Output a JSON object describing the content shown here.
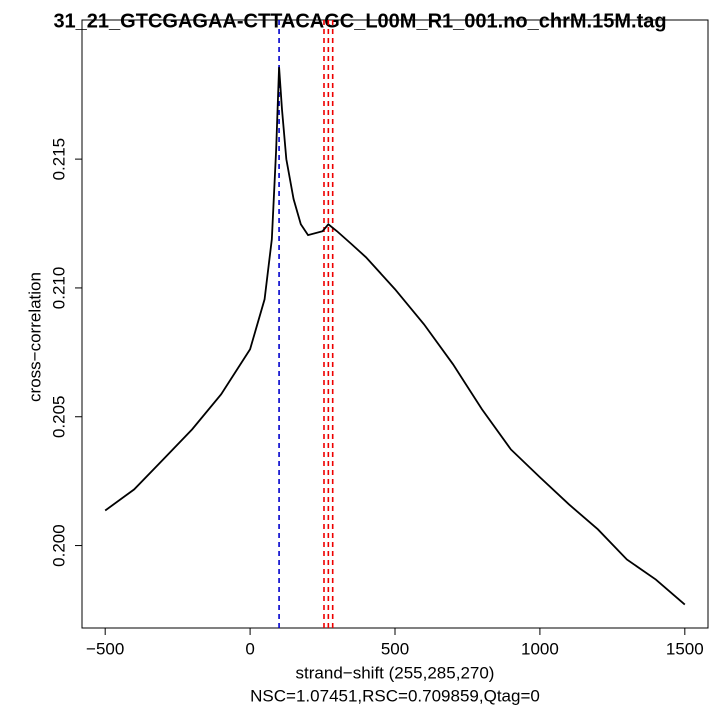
{
  "chart_data": {
    "type": "line",
    "title": "31_21_GTCGAGAA-CTTACAGC_L00M_R1_001.no_chrM.15M.tag",
    "x_label": "strand−shift (255,285,270)",
    "subtitle": "NSC=1.07451,RSC=0.709859,Qtag=0",
    "y_label": "cross−correlation",
    "x": [
      -500,
      -400,
      -300,
      -200,
      -100,
      0,
      50,
      75,
      90,
      100,
      110,
      125,
      150,
      175,
      200,
      250,
      270,
      300,
      350,
      400,
      500,
      600,
      700,
      800,
      900,
      1000,
      1100,
      1200,
      1300,
      1400,
      1500
    ],
    "series": [
      {
        "color": "#000000",
        "values": [
          0.20136,
          0.20218,
          0.20334,
          0.20451,
          0.20587,
          0.20762,
          0.20956,
          0.21189,
          0.21539,
          0.21857,
          0.21694,
          0.215,
          0.21345,
          0.21247,
          0.21205,
          0.2122,
          0.21247,
          0.2122,
          0.2117,
          0.21119,
          0.20995,
          0.20859,
          0.20704,
          0.20529,
          0.20373,
          0.20265,
          0.2016,
          0.20063,
          0.19946,
          0.19868,
          0.19771
        ]
      }
    ],
    "vlines": [
      {
        "x": 100,
        "color": "#0000cc"
      },
      {
        "x": 255,
        "color": "#ee0000"
      },
      {
        "x": 285,
        "color": "#ee0000"
      },
      {
        "x": 270,
        "color": "#ee0000"
      }
    ],
    "xlim": [
      -580,
      1580
    ],
    "ylim": [
      0.1968,
      0.2204
    ],
    "xticks": [
      {
        "value": -500,
        "label": "−500"
      },
      0,
      500,
      1000,
      1500
    ],
    "yticks": [
      {
        "value": 0.2,
        "label": "0.200"
      },
      0.205,
      {
        "value": 0.21,
        "label": "0.210"
      },
      0.215
    ]
  }
}
